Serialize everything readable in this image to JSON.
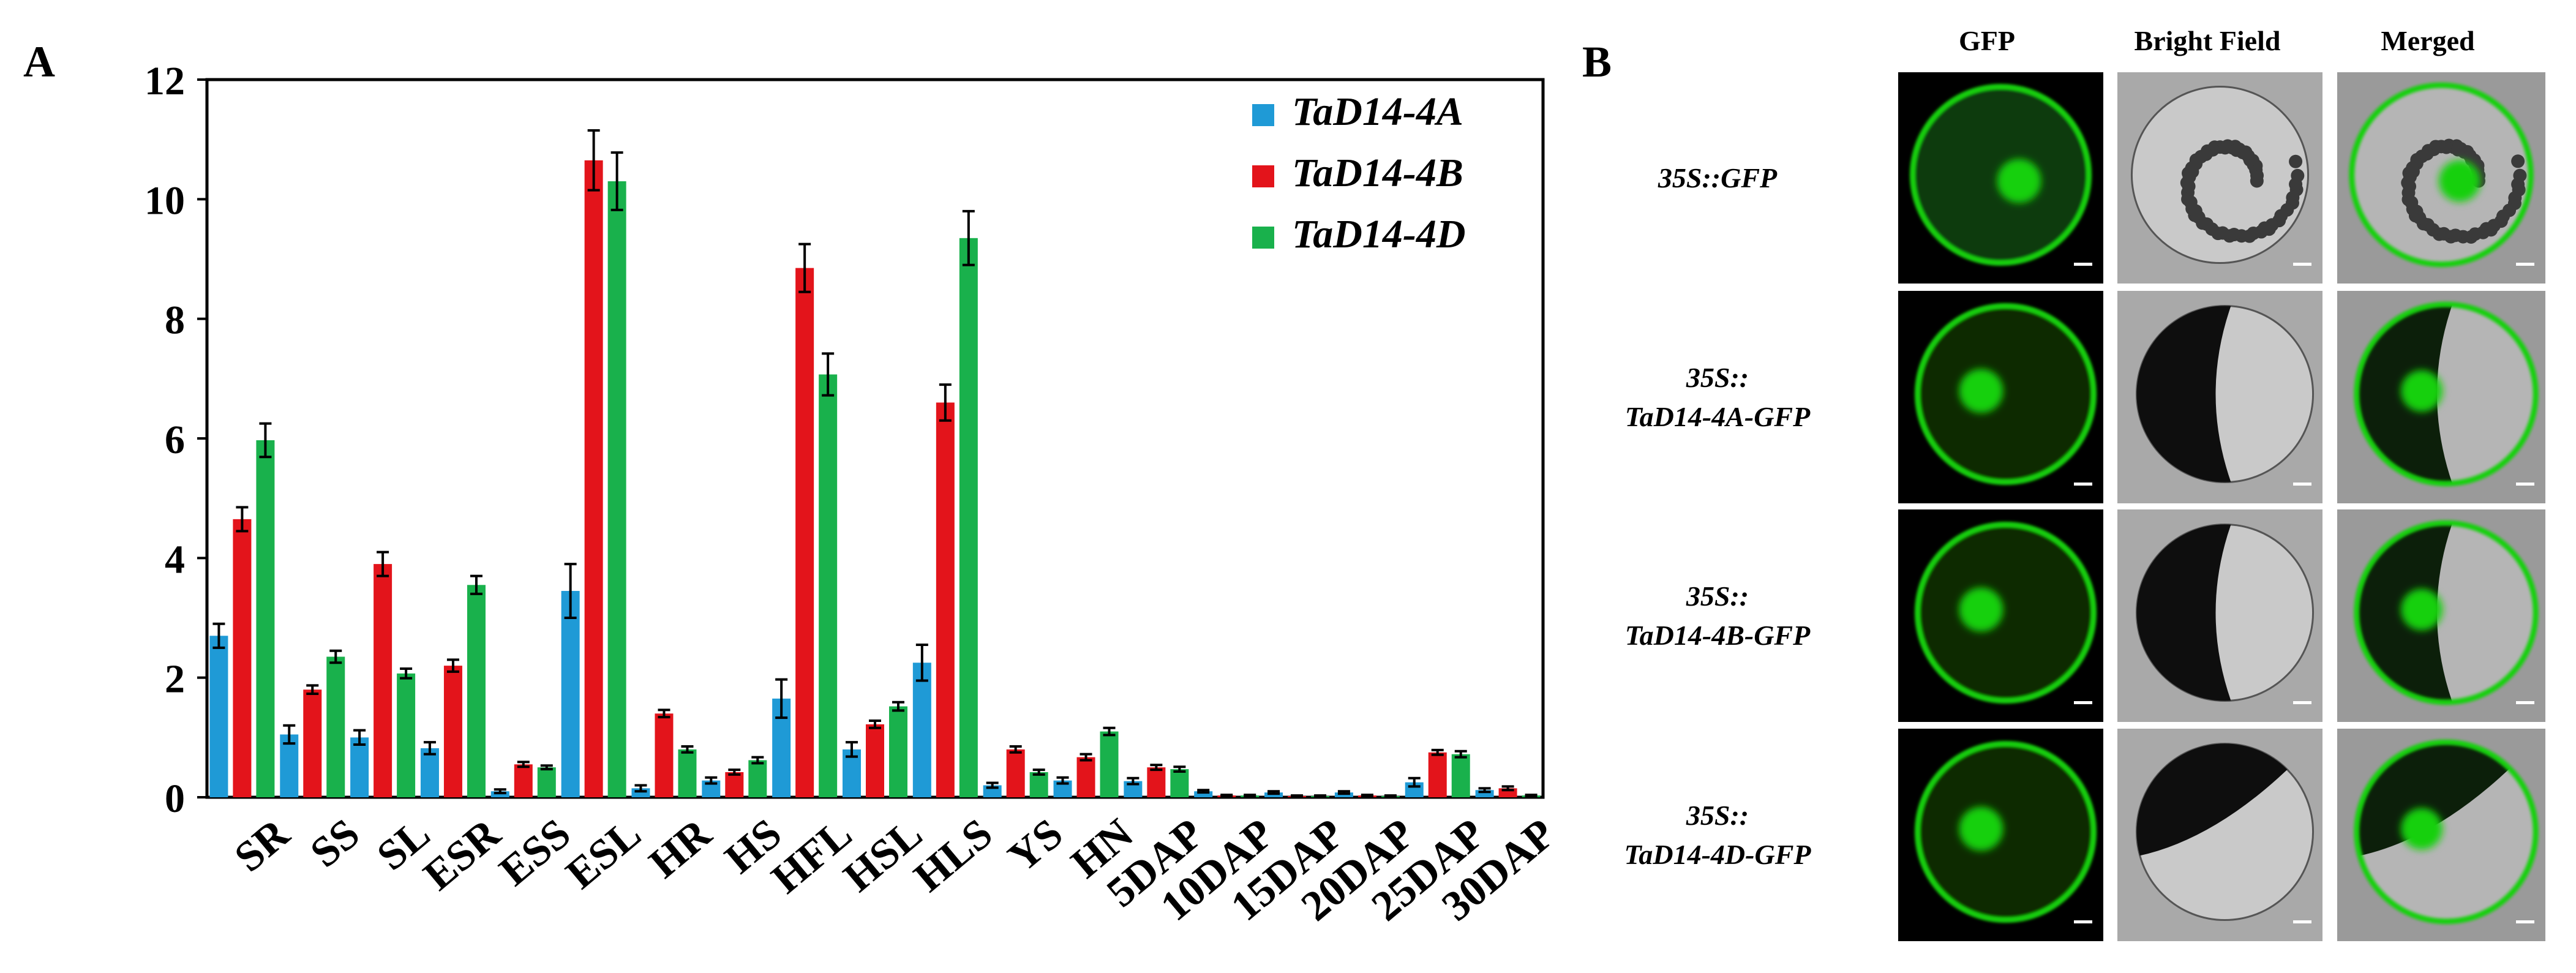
{
  "panel_a": {
    "letter": "A"
  },
  "panel_b": {
    "letter": "B",
    "columns": [
      "GFP",
      "Bright Field",
      "Merged"
    ],
    "rows": [
      {
        "lines": [
          "35S::GFP"
        ],
        "nucleus": true,
        "dark_side": "none"
      },
      {
        "lines": [
          "35S::",
          "TaD14-4A-GFP"
        ],
        "nucleus": true,
        "dark_side": "left"
      },
      {
        "lines": [
          "35S::",
          "TaD14-4B-GFP"
        ],
        "nucleus": true,
        "dark_side": "left"
      },
      {
        "lines": [
          "35S::",
          "TaD14-4D-GFP"
        ],
        "nucleus": true,
        "dark_side": "top-left"
      }
    ],
    "colors": {
      "gfp": "#18d010",
      "bright_bg": "#b8b8b8"
    }
  },
  "chart_data": {
    "type": "bar",
    "title": "",
    "xlabel": "",
    "ylabel": "",
    "ylim": [
      0,
      12
    ],
    "yticks": [
      0,
      2,
      4,
      6,
      8,
      10,
      12
    ],
    "grid": false,
    "legend": {
      "position": "top-right"
    },
    "categories": [
      "SR",
      "SS",
      "SL",
      "ESR",
      "ESS",
      "ESL",
      "HR",
      "HS",
      "HFL",
      "HSL",
      "HLS",
      "YS",
      "HN",
      "5DAP",
      "10DAP",
      "15DAP",
      "20DAP",
      "25DAP",
      "30DAP"
    ],
    "series": [
      {
        "name": "TaD14-4A",
        "color": "#1f9ad6",
        "values": [
          2.7,
          1.05,
          1.0,
          0.82,
          0.1,
          3.45,
          0.15,
          0.28,
          1.65,
          0.8,
          2.25,
          0.2,
          0.28,
          0.27,
          0.1,
          0.08,
          0.08,
          0.25,
          0.12
        ],
        "errors": [
          0.2,
          0.15,
          0.12,
          0.1,
          0.03,
          0.45,
          0.05,
          0.05,
          0.32,
          0.12,
          0.3,
          0.04,
          0.05,
          0.05,
          0.02,
          0.02,
          0.02,
          0.07,
          0.03
        ]
      },
      {
        "name": "TaD14-4B",
        "color": "#e3141b",
        "values": [
          4.65,
          1.8,
          3.9,
          2.2,
          0.55,
          10.65,
          1.4,
          0.42,
          8.85,
          1.22,
          6.6,
          0.8,
          0.67,
          0.5,
          0.03,
          0.02,
          0.03,
          0.75,
          0.15
        ],
        "errors": [
          0.2,
          0.07,
          0.2,
          0.1,
          0.04,
          0.5,
          0.06,
          0.04,
          0.4,
          0.06,
          0.3,
          0.05,
          0.05,
          0.04,
          0.01,
          0.01,
          0.01,
          0.04,
          0.03
        ]
      },
      {
        "name": "TaD14-4D",
        "color": "#19b14c",
        "values": [
          5.97,
          2.35,
          2.07,
          3.55,
          0.5,
          10.3,
          0.8,
          0.62,
          7.07,
          1.52,
          9.35,
          0.42,
          1.1,
          0.47,
          0.03,
          0.02,
          0.02,
          0.72,
          0.03
        ],
        "errors": [
          0.28,
          0.1,
          0.08,
          0.15,
          0.03,
          0.48,
          0.05,
          0.05,
          0.35,
          0.07,
          0.45,
          0.04,
          0.06,
          0.04,
          0.01,
          0.01,
          0.01,
          0.05,
          0.01
        ]
      }
    ]
  }
}
